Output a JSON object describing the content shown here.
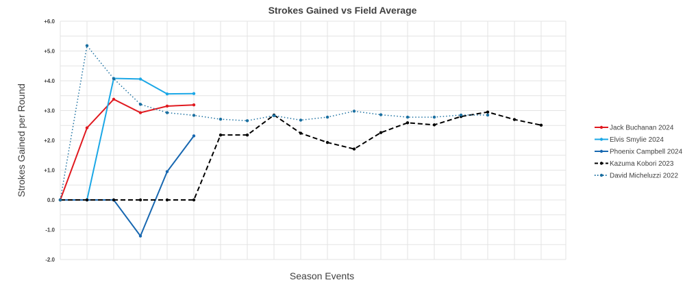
{
  "chart_data": {
    "type": "line",
    "title": "Strokes Gained vs Field Average",
    "xlabel": "Season Events",
    "ylabel": "Strokes Gained per Round",
    "ylim": [
      -2,
      6
    ],
    "y_ticks": [
      "+6.0",
      "+5.0",
      "+4.0",
      "+3.0",
      "+2.0",
      "+1.0",
      "0.0",
      "-1.0",
      "-2.0"
    ],
    "x_categories": 20,
    "grid": true,
    "legend_position": "right",
    "series": [
      {
        "name": "Jack Buchanan 2024",
        "color": "#e0191f",
        "dash": "solid",
        "values": [
          0,
          2.42,
          3.38,
          2.93,
          3.15,
          3.19
        ]
      },
      {
        "name": "Elvis Smylie 2024",
        "color": "#1aa7e6",
        "dash": "solid",
        "values": [
          0,
          0,
          4.08,
          4.06,
          3.56,
          3.57
        ]
      },
      {
        "name": "Phoenix Campbell 2024",
        "color": "#1767b0",
        "dash": "solid",
        "values": [
          0,
          0,
          0,
          -1.21,
          0.95,
          2.15
        ]
      },
      {
        "name": "Kazuma Kobori 2023",
        "color": "#000000",
        "dash": "dashed",
        "values": [
          0,
          0,
          0,
          0,
          0,
          0,
          2.18,
          2.18,
          2.85,
          2.24,
          1.93,
          1.71,
          2.26,
          2.59,
          2.52,
          2.8,
          2.95,
          2.7,
          2.51
        ]
      },
      {
        "name": "David Micheluzzi 2022",
        "color": "#1a6fa0",
        "dash": "dotted",
        "values": [
          0,
          5.18,
          4.07,
          3.21,
          2.93,
          2.84,
          2.71,
          2.66,
          2.83,
          2.68,
          2.78,
          2.98,
          2.86,
          2.78,
          2.78,
          2.85,
          2.85
        ]
      }
    ]
  }
}
